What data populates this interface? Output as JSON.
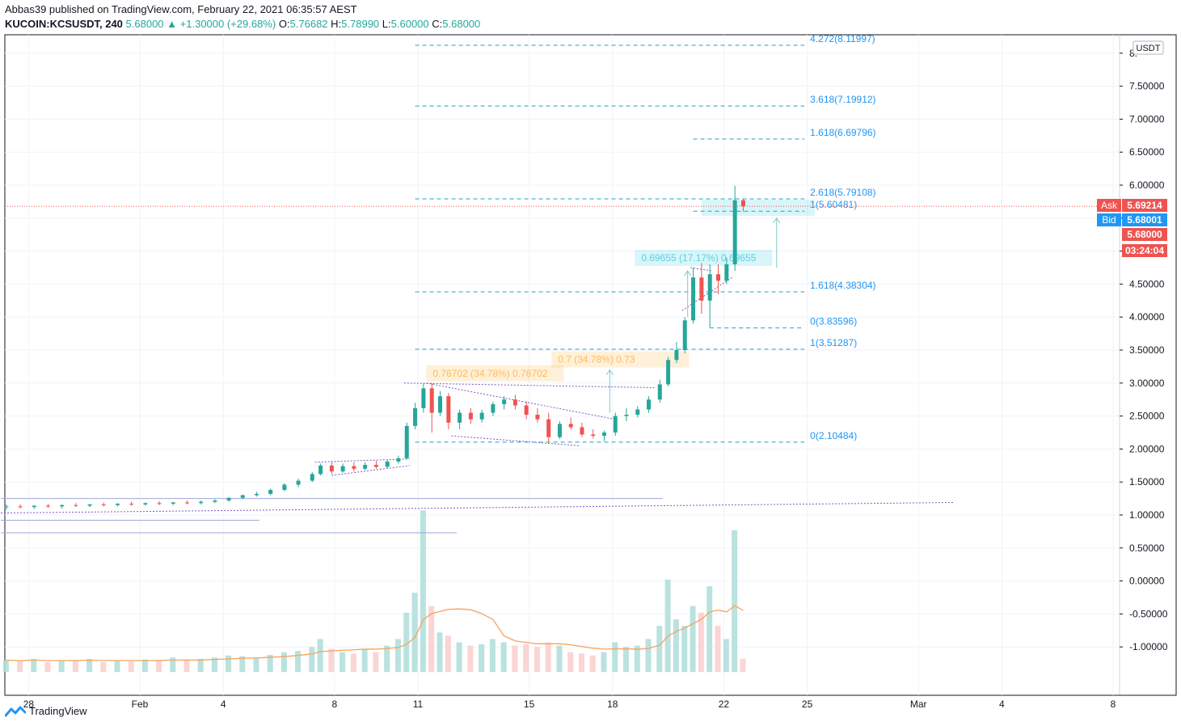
{
  "header": {
    "published": "Abbas39 published on TradingView.com, February 22, 2021 06:35:57 AEST",
    "symbol": "KUCOIN:KCSUSDT, 240",
    "last": "5.68000",
    "change": "▲ +1.30000 (+29.68%)",
    "o_label": "O:",
    "o_value": "5.76682",
    "h_label": "H:",
    "h_value": "5.78990",
    "l_label": "L:",
    "l_value": "5.60000",
    "c_label": "C:",
    "c_value": "5.68000"
  },
  "footer": {
    "brand": "TradingView",
    "logo_icon": "tradingview-logo-icon"
  },
  "colors": {
    "up": "#26a69a",
    "down": "#ef5350",
    "fib": "#2196f3",
    "trend": "#7e57c2",
    "ask": "#ef5350",
    "bid": "#2196f3",
    "vol_ma": "#f7a35c"
  },
  "chart_data": {
    "type": "candlestick",
    "currency_label": "USDT",
    "y_axis_ticks": [
      "8.",
      "7.50000",
      "7.00000",
      "6.50000",
      "6.00000",
      "5.50000",
      "5.00000",
      "4.50000",
      "4.00000",
      "3.50000",
      "3.00000",
      "2.50000",
      "2.00000",
      "1.50000",
      "1.00000",
      "0.50000",
      "0.00000",
      "-0.50000",
      "-1.00000"
    ],
    "y_axis_tick_values": [
      8,
      7.5,
      7,
      6.5,
      6,
      5.5,
      5,
      4.5,
      4,
      3.5,
      3,
      2.5,
      2,
      1.5,
      1,
      0.5,
      0,
      -0.5,
      -1
    ],
    "x_axis_ticks": [
      "28",
      "Feb",
      "4",
      "8",
      "11",
      "15",
      "18",
      "22",
      "25",
      "Mar",
      "4",
      "8"
    ],
    "x_axis_tick_days": [
      -4,
      0,
      3,
      7,
      10,
      14,
      17,
      21,
      24,
      28,
      31,
      35
    ],
    "x_axis_day_zero": "Feb 1 2021",
    "fib_levels": [
      {
        "label": "4.272(8.11997)",
        "value": 8.11997,
        "start_day": 9.9,
        "end_day": 23.9
      },
      {
        "label": "3.618(7.19912)",
        "value": 7.19912,
        "start_day": 9.9,
        "end_day": 23.9
      },
      {
        "label": "1.618(6.69796)",
        "value": 6.69796,
        "start_day": 19.9,
        "end_day": 23.9
      },
      {
        "label": "2.618(5.79108)",
        "value": 5.79108,
        "start_day": 9.9,
        "end_day": 23.9
      },
      {
        "label": "1(5.60481)",
        "value": 5.60481,
        "start_day": 19.9,
        "end_day": 23.9
      },
      {
        "label": "1.618(4.38304)",
        "value": 4.38304,
        "start_day": 9.9,
        "end_day": 23.9
      },
      {
        "label": "0(3.83596)",
        "value": 3.83596,
        "start_day": 20.5,
        "end_day": 23.9
      },
      {
        "label": "1(3.51287)",
        "value": 3.51287,
        "start_day": 9.9,
        "end_day": 23.9
      },
      {
        "label": "0(2.10484)",
        "value": 2.10484,
        "start_day": 9.9,
        "end_day": 23.9
      }
    ],
    "price_labels": [
      {
        "text": "Ask",
        "value": "5.69214",
        "price": 5.69214,
        "color": "#ef5350"
      },
      {
        "text": "Bid",
        "value": "5.68001",
        "price": 5.68001,
        "color": "#2196f3"
      },
      {
        "text": "",
        "value": "5.68000",
        "price": 5.68,
        "color": "#ef5350"
      },
      {
        "text": "",
        "value": "03:24:04",
        "price": 5.22,
        "color": "#ef5350"
      }
    ],
    "measure_boxes": [
      {
        "text": "0.76702 (34.78%) 0.76702",
        "color": "#ff9800",
        "x_day": 10.3,
        "price": 3.27
      },
      {
        "text": "0.7 (34.78%) 0.73",
        "color": "#ff9800",
        "x_day": 14.8,
        "price": 3.48
      },
      {
        "text": "0.69655 (17.17%) 0.69655",
        "color": "#00bcd4",
        "x_day": 17.8,
        "price": 5.02
      },
      {
        "text": "",
        "color": "#00bcd4",
        "x_day": 20.2,
        "price": 5.78
      }
    ],
    "horizontal_lines": [
      {
        "value": 1.25,
        "start_day": -5,
        "end_day": 18.8
      },
      {
        "value": 0.92,
        "start_day": -5,
        "end_day": 4.3
      },
      {
        "value": 0.73,
        "start_day": -5,
        "end_day": 11.4
      }
    ],
    "trend_lines": [
      {
        "d1": -5,
        "p1": 1.03,
        "d2": 29.3,
        "p2": 1.19
      },
      {
        "d1": 9.5,
        "p1": 3.0,
        "d2": 18.5,
        "p2": 2.93
      },
      {
        "d1": 10.3,
        "p1": 3.0,
        "d2": 17.1,
        "p2": 2.45
      },
      {
        "d1": 11.2,
        "p1": 2.2,
        "d2": 15.8,
        "p2": 2.05
      },
      {
        "d1": 6.3,
        "p1": 1.8,
        "d2": 9.7,
        "p2": 1.85
      },
      {
        "d1": 6.9,
        "p1": 1.6,
        "d2": 9.7,
        "p2": 1.75
      },
      {
        "d1": 19.8,
        "p1": 4.75,
        "d2": 20.6,
        "p2": 4.7
      },
      {
        "d1": 19.5,
        "p1": 4.1,
        "d2": 21.3,
        "p2": 4.6
      }
    ],
    "candles": [
      {
        "day": -4.8,
        "o": 1.12,
        "h": 1.16,
        "l": 1.08,
        "c": 1.13
      },
      {
        "day": -4.3,
        "o": 1.13,
        "h": 1.16,
        "l": 1.1,
        "c": 1.12
      },
      {
        "day": -3.8,
        "o": 1.12,
        "h": 1.15,
        "l": 1.09,
        "c": 1.14
      },
      {
        "day": -3.3,
        "o": 1.14,
        "h": 1.17,
        "l": 1.11,
        "c": 1.13
      },
      {
        "day": -2.8,
        "o": 1.13,
        "h": 1.16,
        "l": 1.1,
        "c": 1.15
      },
      {
        "day": -2.3,
        "o": 1.15,
        "h": 1.18,
        "l": 1.12,
        "c": 1.14
      },
      {
        "day": -1.8,
        "o": 1.14,
        "h": 1.17,
        "l": 1.12,
        "c": 1.16
      },
      {
        "day": -1.3,
        "o": 1.16,
        "h": 1.19,
        "l": 1.13,
        "c": 1.15
      },
      {
        "day": -0.8,
        "o": 1.15,
        "h": 1.18,
        "l": 1.13,
        "c": 1.17
      },
      {
        "day": -0.3,
        "o": 1.17,
        "h": 1.2,
        "l": 1.14,
        "c": 1.16
      },
      {
        "day": 0.2,
        "o": 1.16,
        "h": 1.19,
        "l": 1.14,
        "c": 1.18
      },
      {
        "day": 0.7,
        "o": 1.18,
        "h": 1.21,
        "l": 1.15,
        "c": 1.17
      },
      {
        "day": 1.2,
        "o": 1.17,
        "h": 1.2,
        "l": 1.15,
        "c": 1.19
      },
      {
        "day": 1.7,
        "o": 1.19,
        "h": 1.22,
        "l": 1.16,
        "c": 1.18
      },
      {
        "day": 2.2,
        "o": 1.18,
        "h": 1.22,
        "l": 1.16,
        "c": 1.2
      },
      {
        "day": 2.7,
        "o": 1.2,
        "h": 1.24,
        "l": 1.18,
        "c": 1.22
      },
      {
        "day": 3.2,
        "o": 1.22,
        "h": 1.27,
        "l": 1.2,
        "c": 1.26
      },
      {
        "day": 3.7,
        "o": 1.26,
        "h": 1.31,
        "l": 1.24,
        "c": 1.3
      },
      {
        "day": 4.2,
        "o": 1.3,
        "h": 1.35,
        "l": 1.28,
        "c": 1.32
      },
      {
        "day": 4.7,
        "o": 1.32,
        "h": 1.4,
        "l": 1.3,
        "c": 1.38
      },
      {
        "day": 5.2,
        "o": 1.38,
        "h": 1.48,
        "l": 1.36,
        "c": 1.46
      },
      {
        "day": 5.7,
        "o": 1.46,
        "h": 1.55,
        "l": 1.42,
        "c": 1.52
      },
      {
        "day": 6.2,
        "o": 1.52,
        "h": 1.65,
        "l": 1.5,
        "c": 1.62
      },
      {
        "day": 6.5,
        "o": 1.62,
        "h": 1.78,
        "l": 1.6,
        "c": 1.75
      },
      {
        "day": 6.9,
        "o": 1.75,
        "h": 1.8,
        "l": 1.62,
        "c": 1.66
      },
      {
        "day": 7.3,
        "o": 1.66,
        "h": 1.78,
        "l": 1.64,
        "c": 1.74
      },
      {
        "day": 7.7,
        "o": 1.74,
        "h": 1.8,
        "l": 1.66,
        "c": 1.7
      },
      {
        "day": 8.1,
        "o": 1.7,
        "h": 1.8,
        "l": 1.68,
        "c": 1.76
      },
      {
        "day": 8.5,
        "o": 1.76,
        "h": 1.82,
        "l": 1.7,
        "c": 1.73
      },
      {
        "day": 8.9,
        "o": 1.73,
        "h": 1.84,
        "l": 1.71,
        "c": 1.81
      },
      {
        "day": 9.3,
        "o": 1.81,
        "h": 1.9,
        "l": 1.78,
        "c": 1.86
      },
      {
        "day": 9.6,
        "o": 1.86,
        "h": 2.4,
        "l": 1.84,
        "c": 2.35
      },
      {
        "day": 9.9,
        "o": 2.35,
        "h": 2.7,
        "l": 2.3,
        "c": 2.62
      },
      {
        "day": 10.2,
        "o": 2.62,
        "h": 3.0,
        "l": 2.55,
        "c": 2.92
      },
      {
        "day": 10.5,
        "o": 2.92,
        "h": 3.0,
        "l": 2.25,
        "c": 2.55
      },
      {
        "day": 10.8,
        "o": 2.55,
        "h": 2.88,
        "l": 2.5,
        "c": 2.8
      },
      {
        "day": 11.1,
        "o": 2.8,
        "h": 2.85,
        "l": 2.3,
        "c": 2.4
      },
      {
        "day": 11.5,
        "o": 2.4,
        "h": 2.6,
        "l": 2.3,
        "c": 2.55
      },
      {
        "day": 11.9,
        "o": 2.55,
        "h": 2.62,
        "l": 2.38,
        "c": 2.45
      },
      {
        "day": 12.3,
        "o": 2.45,
        "h": 2.6,
        "l": 2.4,
        "c": 2.55
      },
      {
        "day": 12.7,
        "o": 2.55,
        "h": 2.72,
        "l": 2.5,
        "c": 2.68
      },
      {
        "day": 13.1,
        "o": 2.68,
        "h": 2.8,
        "l": 2.6,
        "c": 2.75
      },
      {
        "day": 13.5,
        "o": 2.75,
        "h": 2.82,
        "l": 2.6,
        "c": 2.66
      },
      {
        "day": 13.9,
        "o": 2.66,
        "h": 2.72,
        "l": 2.45,
        "c": 2.52
      },
      {
        "day": 14.3,
        "o": 2.52,
        "h": 2.62,
        "l": 2.4,
        "c": 2.45
      },
      {
        "day": 14.7,
        "o": 2.45,
        "h": 2.55,
        "l": 2.1,
        "c": 2.18
      },
      {
        "day": 15.1,
        "o": 2.18,
        "h": 2.42,
        "l": 2.15,
        "c": 2.38
      },
      {
        "day": 15.5,
        "o": 2.38,
        "h": 2.48,
        "l": 2.3,
        "c": 2.33
      },
      {
        "day": 15.9,
        "o": 2.33,
        "h": 2.4,
        "l": 2.18,
        "c": 2.22
      },
      {
        "day": 16.3,
        "o": 2.22,
        "h": 2.3,
        "l": 2.16,
        "c": 2.2
      },
      {
        "day": 16.7,
        "o": 2.2,
        "h": 2.28,
        "l": 2.12,
        "c": 2.25
      },
      {
        "day": 17.1,
        "o": 2.25,
        "h": 2.55,
        "l": 2.2,
        "c": 2.5
      },
      {
        "day": 17.5,
        "o": 2.5,
        "h": 2.62,
        "l": 2.42,
        "c": 2.52
      },
      {
        "day": 17.9,
        "o": 2.52,
        "h": 2.65,
        "l": 2.48,
        "c": 2.6
      },
      {
        "day": 18.3,
        "o": 2.6,
        "h": 2.8,
        "l": 2.55,
        "c": 2.75
      },
      {
        "day": 18.7,
        "o": 2.75,
        "h": 3.05,
        "l": 2.7,
        "c": 2.98
      },
      {
        "day": 19.0,
        "o": 2.98,
        "h": 3.4,
        "l": 2.95,
        "c": 3.35
      },
      {
        "day": 19.3,
        "o": 3.35,
        "h": 3.62,
        "l": 3.3,
        "c": 3.5
      },
      {
        "day": 19.6,
        "o": 3.5,
        "h": 4.0,
        "l": 3.45,
        "c": 3.95
      },
      {
        "day": 19.9,
        "o": 3.95,
        "h": 4.75,
        "l": 3.9,
        "c": 4.6
      },
      {
        "day": 20.2,
        "o": 4.6,
        "h": 4.82,
        "l": 4.05,
        "c": 4.25
      },
      {
        "day": 20.5,
        "o": 4.25,
        "h": 4.8,
        "l": 3.84,
        "c": 4.65
      },
      {
        "day": 20.8,
        "o": 4.65,
        "h": 4.8,
        "l": 4.35,
        "c": 4.55
      },
      {
        "day": 21.1,
        "o": 4.55,
        "h": 4.9,
        "l": 4.5,
        "c": 4.8
      },
      {
        "day": 21.4,
        "o": 4.8,
        "h": 5.99,
        "l": 4.7,
        "c": 5.77
      },
      {
        "day": 21.7,
        "o": 5.77,
        "h": 5.79,
        "l": 5.6,
        "c": 5.68
      }
    ],
    "volume_axis": {
      "zero_price": -1.38,
      "unit_price": 1.0
    },
    "volume_bars": [
      {
        "day": -4.8,
        "v": 0.18,
        "up": true
      },
      {
        "day": -4.3,
        "v": 0.16,
        "up": false
      },
      {
        "day": -3.8,
        "v": 0.2,
        "up": true
      },
      {
        "day": -3.3,
        "v": 0.15,
        "up": false
      },
      {
        "day": -2.8,
        "v": 0.18,
        "up": true
      },
      {
        "day": -2.3,
        "v": 0.17,
        "up": false
      },
      {
        "day": -1.8,
        "v": 0.2,
        "up": true
      },
      {
        "day": -1.3,
        "v": 0.15,
        "up": false
      },
      {
        "day": -0.8,
        "v": 0.18,
        "up": true
      },
      {
        "day": -0.3,
        "v": 0.16,
        "up": false
      },
      {
        "day": 0.2,
        "v": 0.19,
        "up": true
      },
      {
        "day": 0.7,
        "v": 0.17,
        "up": false
      },
      {
        "day": 1.2,
        "v": 0.22,
        "up": true
      },
      {
        "day": 1.7,
        "v": 0.18,
        "up": false
      },
      {
        "day": 2.2,
        "v": 0.2,
        "up": true
      },
      {
        "day": 2.7,
        "v": 0.22,
        "up": true
      },
      {
        "day": 3.2,
        "v": 0.25,
        "up": true
      },
      {
        "day": 3.7,
        "v": 0.24,
        "up": true
      },
      {
        "day": 4.2,
        "v": 0.22,
        "up": true
      },
      {
        "day": 4.7,
        "v": 0.26,
        "up": true
      },
      {
        "day": 5.2,
        "v": 0.3,
        "up": true
      },
      {
        "day": 5.7,
        "v": 0.32,
        "up": true
      },
      {
        "day": 6.2,
        "v": 0.38,
        "up": true
      },
      {
        "day": 6.5,
        "v": 0.5,
        "up": true
      },
      {
        "day": 6.9,
        "v": 0.35,
        "up": false
      },
      {
        "day": 7.3,
        "v": 0.3,
        "up": true
      },
      {
        "day": 7.7,
        "v": 0.28,
        "up": false
      },
      {
        "day": 8.1,
        "v": 0.34,
        "up": true
      },
      {
        "day": 8.5,
        "v": 0.3,
        "up": false
      },
      {
        "day": 8.9,
        "v": 0.4,
        "up": true
      },
      {
        "day": 9.3,
        "v": 0.5,
        "up": true
      },
      {
        "day": 9.6,
        "v": 0.9,
        "up": true
      },
      {
        "day": 9.9,
        "v": 1.2,
        "up": true
      },
      {
        "day": 10.2,
        "v": 2.45,
        "up": true
      },
      {
        "day": 10.5,
        "v": 1.0,
        "up": false
      },
      {
        "day": 10.8,
        "v": 0.6,
        "up": true
      },
      {
        "day": 11.1,
        "v": 0.55,
        "up": false
      },
      {
        "day": 11.5,
        "v": 0.45,
        "up": true
      },
      {
        "day": 11.9,
        "v": 0.4,
        "up": false
      },
      {
        "day": 12.3,
        "v": 0.42,
        "up": true
      },
      {
        "day": 12.7,
        "v": 0.5,
        "up": true
      },
      {
        "day": 13.1,
        "v": 0.45,
        "up": true
      },
      {
        "day": 13.5,
        "v": 0.4,
        "up": false
      },
      {
        "day": 13.9,
        "v": 0.42,
        "up": false
      },
      {
        "day": 14.3,
        "v": 0.38,
        "up": false
      },
      {
        "day": 14.7,
        "v": 0.45,
        "up": false
      },
      {
        "day": 15.1,
        "v": 0.4,
        "up": true
      },
      {
        "day": 15.5,
        "v": 0.3,
        "up": false
      },
      {
        "day": 15.9,
        "v": 0.28,
        "up": false
      },
      {
        "day": 16.3,
        "v": 0.25,
        "up": false
      },
      {
        "day": 16.7,
        "v": 0.3,
        "up": true
      },
      {
        "day": 17.1,
        "v": 0.45,
        "up": true
      },
      {
        "day": 17.5,
        "v": 0.38,
        "up": true
      },
      {
        "day": 17.9,
        "v": 0.4,
        "up": true
      },
      {
        "day": 18.3,
        "v": 0.5,
        "up": true
      },
      {
        "day": 18.7,
        "v": 0.7,
        "up": true
      },
      {
        "day": 19.0,
        "v": 1.4,
        "up": true
      },
      {
        "day": 19.3,
        "v": 0.8,
        "up": true
      },
      {
        "day": 19.6,
        "v": 0.7,
        "up": true
      },
      {
        "day": 19.9,
        "v": 1.0,
        "up": true
      },
      {
        "day": 20.2,
        "v": 0.9,
        "up": false
      },
      {
        "day": 20.5,
        "v": 1.3,
        "up": true
      },
      {
        "day": 20.8,
        "v": 0.7,
        "up": false
      },
      {
        "day": 21.1,
        "v": 0.5,
        "up": true
      },
      {
        "day": 21.4,
        "v": 2.15,
        "up": true
      },
      {
        "day": 21.7,
        "v": 0.2,
        "up": false
      }
    ]
  }
}
